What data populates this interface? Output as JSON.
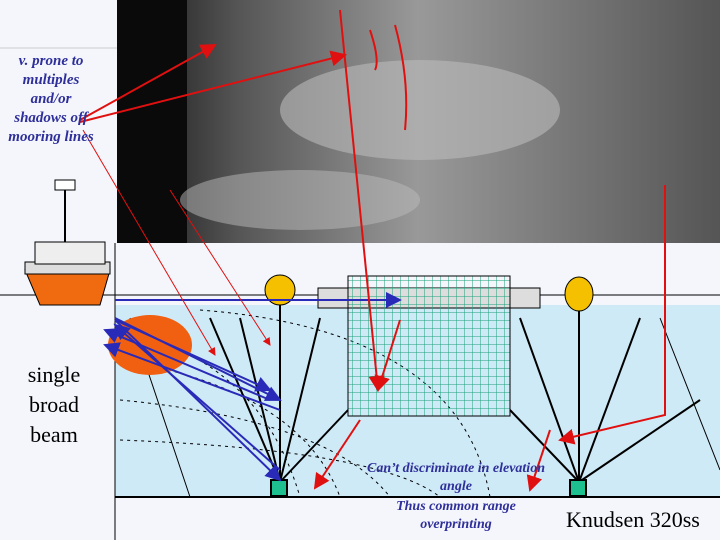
{
  "annotations": {
    "prone": "v. prone to multiples and/or shadows off mooring lines",
    "beam": "single broad beam",
    "cant": "Can’t discriminate in elevation angle",
    "thus": "Thus common range overprinting",
    "sonar_model": "Knudsen 320ss"
  },
  "colors": {
    "water": "#cfeaf7",
    "arrow_red": "#e01010",
    "beam_blue": "#2a2ab8",
    "net_green": "#1aa37a",
    "buoy": "#f5c000",
    "beam_orange": "#f06010",
    "hull": "#f06a10"
  }
}
